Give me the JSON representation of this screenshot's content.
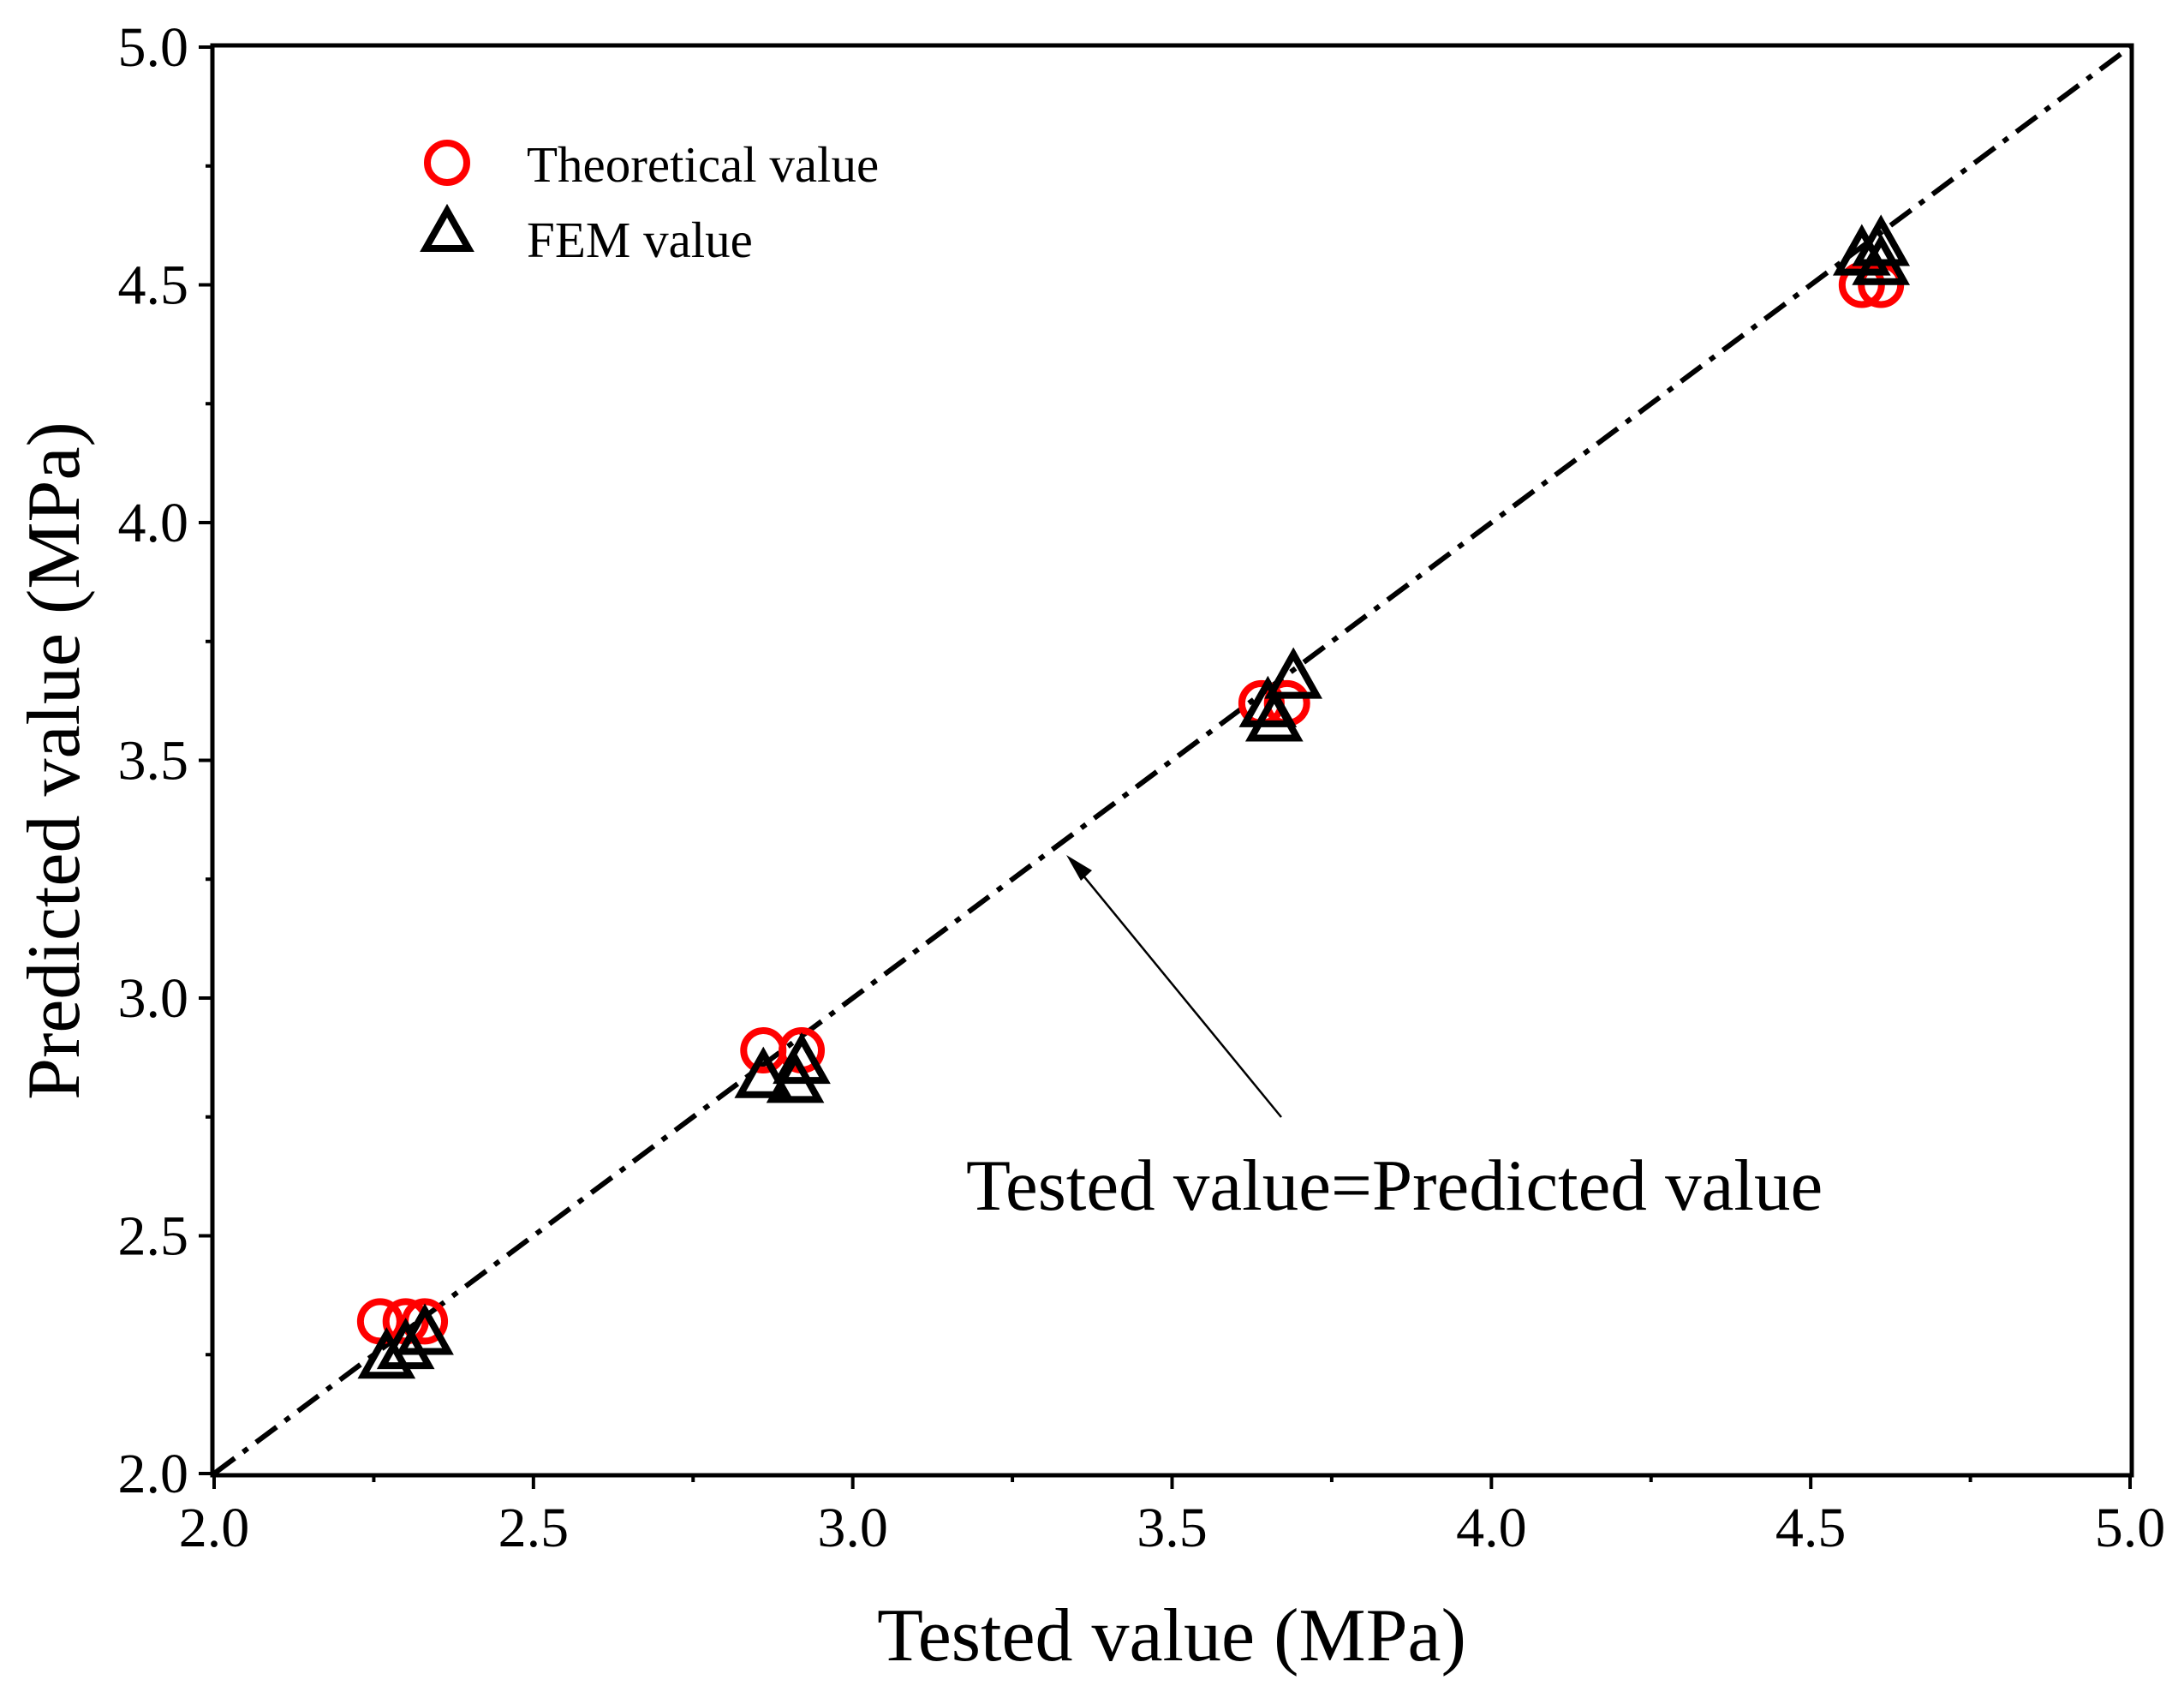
{
  "chart_data": {
    "type": "scatter",
    "title": "",
    "xlabel": "Tested value (MPa)",
    "ylabel": "Predicted value (MPa)",
    "xlim": [
      2.0,
      5.0
    ],
    "ylim": [
      2.0,
      5.0
    ],
    "major_ticks": [
      2.0,
      2.5,
      3.0,
      3.5,
      4.0,
      4.5,
      5.0
    ],
    "tick_labels": [
      "2.0",
      "2.5",
      "3.0",
      "3.5",
      "4.0",
      "4.5",
      "5.0"
    ],
    "minor_ticks": [
      2.25,
      2.75,
      3.25,
      3.75,
      4.25,
      4.75
    ],
    "grid": false,
    "legend_position": "top-left",
    "series": [
      {
        "name": "Theoretical value",
        "marker": "circle",
        "color": "#ff0000",
        "points": [
          {
            "x": 2.26,
            "y": 2.32
          },
          {
            "x": 2.3,
            "y": 2.32
          },
          {
            "x": 2.33,
            "y": 2.32
          },
          {
            "x": 2.86,
            "y": 2.89
          },
          {
            "x": 2.92,
            "y": 2.89
          },
          {
            "x": 3.64,
            "y": 3.62
          },
          {
            "x": 3.68,
            "y": 3.62
          },
          {
            "x": 4.58,
            "y": 4.5
          },
          {
            "x": 4.61,
            "y": 4.5
          }
        ]
      },
      {
        "name": "FEM value",
        "marker": "triangle",
        "color": "#000000",
        "points": [
          {
            "x": 2.27,
            "y": 2.25
          },
          {
            "x": 2.3,
            "y": 2.27
          },
          {
            "x": 2.33,
            "y": 2.3
          },
          {
            "x": 2.86,
            "y": 2.84
          },
          {
            "x": 2.91,
            "y": 2.83
          },
          {
            "x": 2.92,
            "y": 2.87
          },
          {
            "x": 3.65,
            "y": 3.62
          },
          {
            "x": 3.66,
            "y": 3.59
          },
          {
            "x": 3.69,
            "y": 3.68
          },
          {
            "x": 4.58,
            "y": 4.57
          },
          {
            "x": 4.61,
            "y": 4.59
          },
          {
            "x": 4.61,
            "y": 4.55
          }
        ]
      }
    ],
    "reference_line": {
      "label": "Tested value=Predicted value",
      "style": "dash-dot",
      "color": "#000000",
      "from": [
        2.0,
        2.0
      ],
      "to": [
        5.0,
        5.0
      ]
    },
    "annotation": {
      "text": "Tested value=Predicted value",
      "arrow_target": [
        3.33,
        3.31
      ]
    }
  }
}
